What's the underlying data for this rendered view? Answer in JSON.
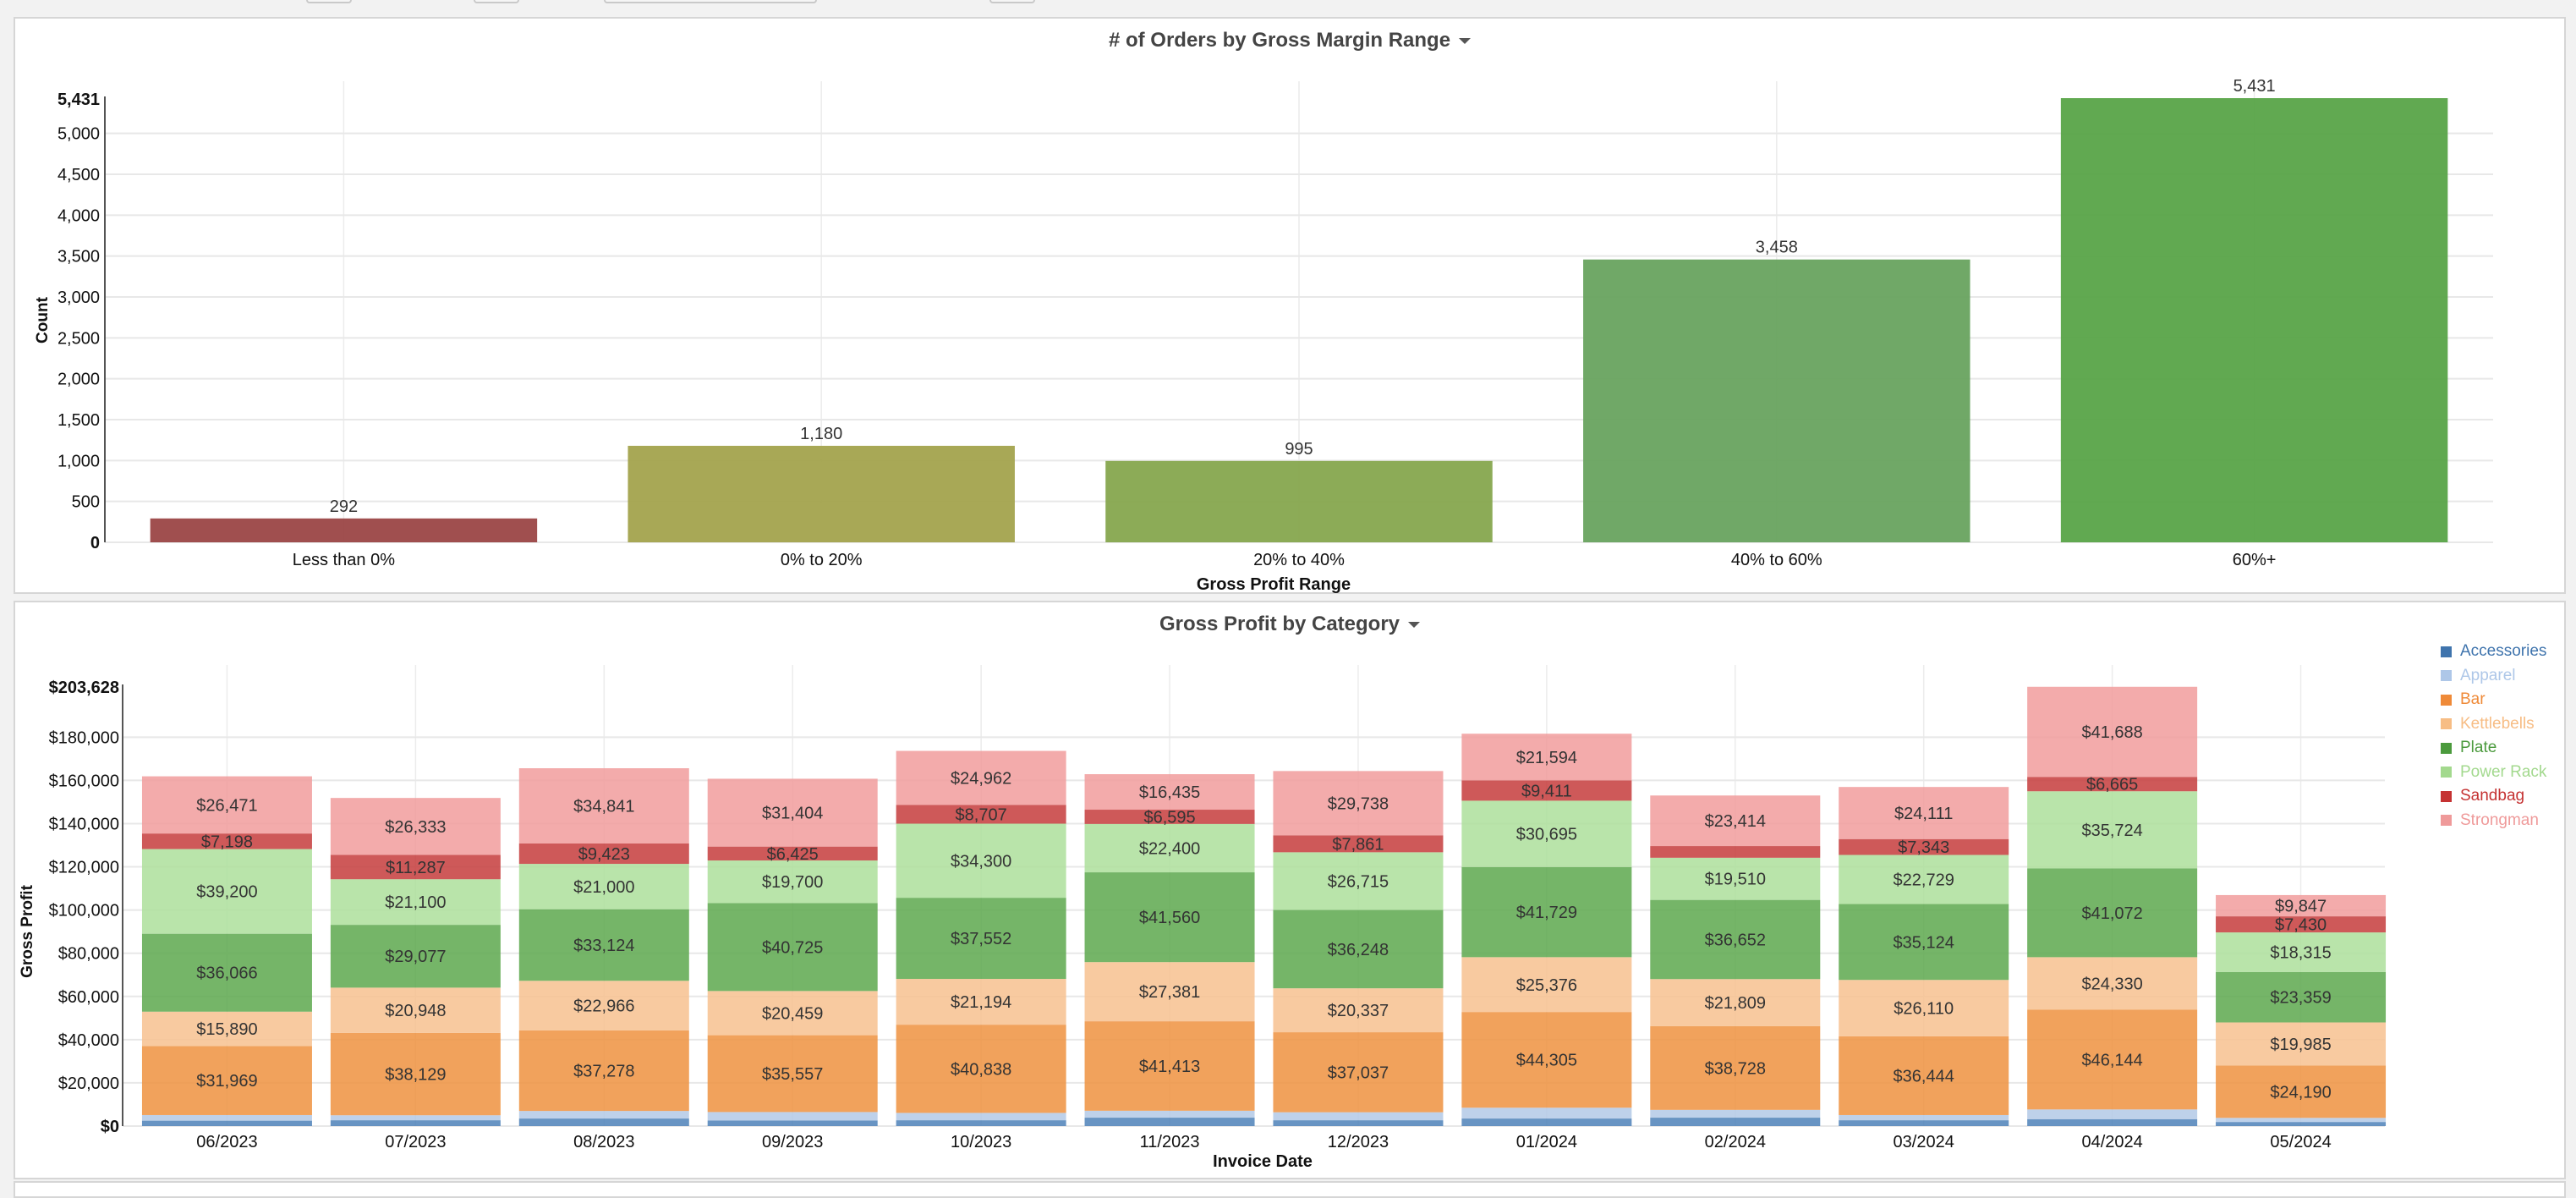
{
  "chart_data": [
    {
      "type": "bar",
      "title": "# of Orders by Gross Margin Range",
      "xlabel": "Gross Profit Range",
      "ylabel": "Count",
      "categories": [
        "Less than 0%",
        "0% to 20%",
        "20% to 40%",
        "40% to 60%",
        "60%+"
      ],
      "values": [
        292,
        1180,
        995,
        3458,
        5431
      ],
      "data_labels": [
        "292",
        "1,180",
        "995",
        "3,458",
        "5,431"
      ],
      "colors": [
        "#9b4646",
        "#a3a34d",
        "#86a74e",
        "#68a35f",
        "#58a448"
      ],
      "ylim": [
        0,
        5431
      ],
      "yticks": [
        0,
        500,
        1000,
        1500,
        2000,
        2500,
        3000,
        3500,
        4000,
        4500,
        5000
      ],
      "ytick_labels": [
        "0",
        "500",
        "1,000",
        "1,500",
        "2,000",
        "2,500",
        "3,000",
        "3,500",
        "4,000",
        "4,500",
        "5,000"
      ],
      "ymax_label": "5,431",
      "grid": true,
      "legend": "none"
    },
    {
      "type": "bar",
      "stacked": true,
      "title": "Gross Profit by Category",
      "xlabel": "Invoice Date",
      "ylabel": "Gross Profit",
      "categories": [
        "06/2023",
        "07/2023",
        "08/2023",
        "09/2023",
        "10/2023",
        "11/2023",
        "12/2023",
        "01/2024",
        "02/2024",
        "03/2024",
        "04/2024",
        "05/2024"
      ],
      "series": [
        {
          "name": "Accessories",
          "color": "#4e81b8",
          "values": [
            2500,
            2700,
            3500,
            2600,
            2700,
            3900,
            2700,
            3500,
            3900,
            2700,
            3200,
            1900
          ],
          "labels": [
            null,
            null,
            null,
            null,
            null,
            null,
            null,
            null,
            null,
            null,
            null,
            null
          ]
        },
        {
          "name": "Apparel",
          "color": "#b3c9e6",
          "values": [
            2600,
            2300,
            3500,
            3900,
            3400,
            3200,
            3700,
            5000,
            3600,
            2400,
            4500,
            1900
          ],
          "labels": [
            null,
            null,
            null,
            null,
            null,
            null,
            null,
            null,
            null,
            null,
            null,
            null
          ]
        },
        {
          "name": "Bar",
          "color": "#ef9240",
          "values": [
            31969,
            38129,
            37278,
            35557,
            40838,
            41413,
            37037,
            44305,
            38728,
            36444,
            46144,
            24190
          ],
          "labels": [
            "$31,969",
            "$38,129",
            "$37,278",
            "$35,557",
            "$40,838",
            "$41,413",
            "$37,037",
            "$44,305",
            "$38,728",
            "$36,444",
            "$46,144",
            "$24,190"
          ]
        },
        {
          "name": "Kettlebells",
          "color": "#f7c18f",
          "values": [
            15890,
            20948,
            22966,
            20459,
            21194,
            27381,
            20337,
            25376,
            21809,
            26110,
            24330,
            19985
          ],
          "labels": [
            "$15,890",
            "$20,948",
            "$22,966",
            "$20,459",
            "$21,194",
            "$27,381",
            "$20,337",
            "$25,376",
            "$21,809",
            "$26,110",
            "$24,330",
            "$19,985"
          ]
        },
        {
          "name": "Plate",
          "color": "#5da84e",
          "values": [
            36066,
            29077,
            33124,
            40725,
            37552,
            41560,
            36248,
            41729,
            36652,
            35124,
            41072,
            23359
          ],
          "labels": [
            "$36,066",
            "$29,077",
            "$33,124",
            "$40,725",
            "$37,552",
            "$41,560",
            "$36,248",
            "$41,729",
            "$36,652",
            "$35,124",
            "$41,072",
            "$23,359"
          ]
        },
        {
          "name": "Power Rack",
          "color": "#addf9b",
          "values": [
            39200,
            21100,
            21000,
            19700,
            34300,
            22400,
            26715,
            30695,
            19510,
            22729,
            35724,
            18315
          ],
          "labels": [
            "$39,200",
            "$21,100",
            "$21,000",
            "$19,700",
            "$34,300",
            "$22,400",
            "$26,715",
            "$30,695",
            "$19,510",
            "$22,729",
            "$35,724",
            "$18,315"
          ]
        },
        {
          "name": "Sandbag",
          "color": "#c53c3c",
          "values": [
            7198,
            11287,
            9423,
            6425,
            8707,
            6595,
            7861,
            9411,
            5400,
            7343,
            6665,
            7430
          ],
          "labels": [
            "$7,198",
            "$11,287",
            "$9,423",
            "$6,425",
            "$8,707",
            "$6,595",
            "$7,861",
            "$9,411",
            null,
            "$7,343",
            "$6,665",
            "$7,430"
          ]
        },
        {
          "name": "Strongman",
          "color": "#f19c9c",
          "values": [
            26471,
            26333,
            34841,
            31404,
            24962,
            16435,
            29738,
            21594,
            23414,
            24111,
            41688,
            9847
          ],
          "labels": [
            "$26,471",
            "$26,333",
            "$34,841",
            "$31,404",
            "$24,962",
            "$16,435",
            "$29,738",
            "$21,594",
            "$23,414",
            "$24,111",
            "$41,688",
            "$9,847"
          ]
        }
      ],
      "ylim": [
        0,
        203628
      ],
      "yticks": [
        0,
        20000,
        40000,
        60000,
        80000,
        100000,
        120000,
        140000,
        160000,
        180000
      ],
      "ytick_labels": [
        "$0",
        "$20,000",
        "$40,000",
        "$60,000",
        "$80,000",
        "$100,000",
        "$120,000",
        "$140,000",
        "$160,000",
        "$180,000"
      ],
      "ymax_label": "$203,628",
      "grid": true,
      "legend": "right"
    }
  ],
  "panels": {
    "orders": {
      "title": "# of Orders by Gross Margin Range",
      "menu_icon": "caret-down-icon"
    },
    "profit": {
      "title": "Gross Profit by Category",
      "menu_icon": "caret-down-icon"
    }
  },
  "legend": {
    "items": [
      {
        "label": "Accessories",
        "color": "#3f74ad"
      },
      {
        "label": "Apparel",
        "color": "#aec7e8"
      },
      {
        "label": "Bar",
        "color": "#ef8a38"
      },
      {
        "label": "Kettlebells",
        "color": "#f7bd85"
      },
      {
        "label": "Plate",
        "color": "#4b9a3d"
      },
      {
        "label": "Power Rack",
        "color": "#a3d98e"
      },
      {
        "label": "Sandbag",
        "color": "#c53232"
      },
      {
        "label": "Strongman",
        "color": "#ef9a9a"
      }
    ]
  }
}
